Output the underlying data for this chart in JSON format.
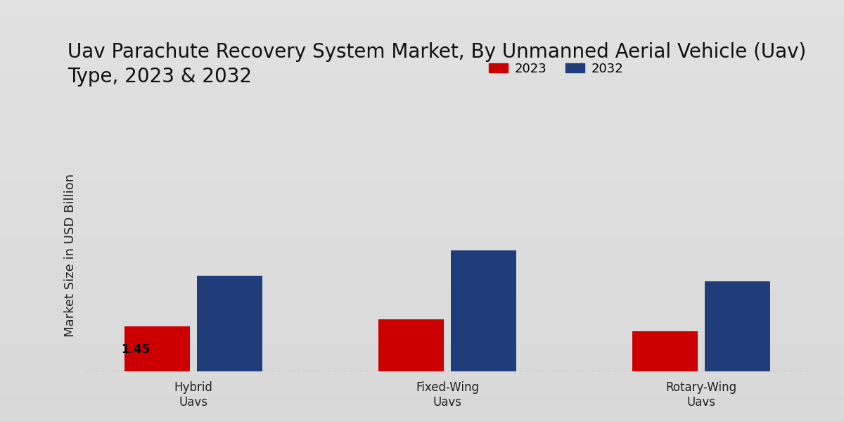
{
  "title": "Uav Parachute Recovery System Market, By Unmanned Aerial Vehicle (Uav)\nType, 2023 & 2032",
  "ylabel": "Market Size in USD Billion",
  "categories": [
    "Hybrid\nUavs",
    "Fixed-Wing\nUavs",
    "Rotary-Wing\nUavs"
  ],
  "values_2023": [
    1.45,
    1.68,
    1.3
  ],
  "values_2032": [
    3.1,
    3.9,
    2.9
  ],
  "color_2023": "#cc0000",
  "color_2032": "#1f3d7a",
  "annotation_value": "1.45",
  "annotation_bar": 0,
  "background_color_light": "#e8e8e8",
  "background_color_dark": "#c8c8c8",
  "bar_width": 0.18,
  "legend_labels": [
    "2023",
    "2032"
  ],
  "ylim": [
    0,
    7.5
  ],
  "title_fontsize": 20,
  "axis_label_fontsize": 13,
  "tick_label_fontsize": 12,
  "legend_fontsize": 13,
  "x_positions": [
    0.3,
    1.0,
    1.7
  ]
}
